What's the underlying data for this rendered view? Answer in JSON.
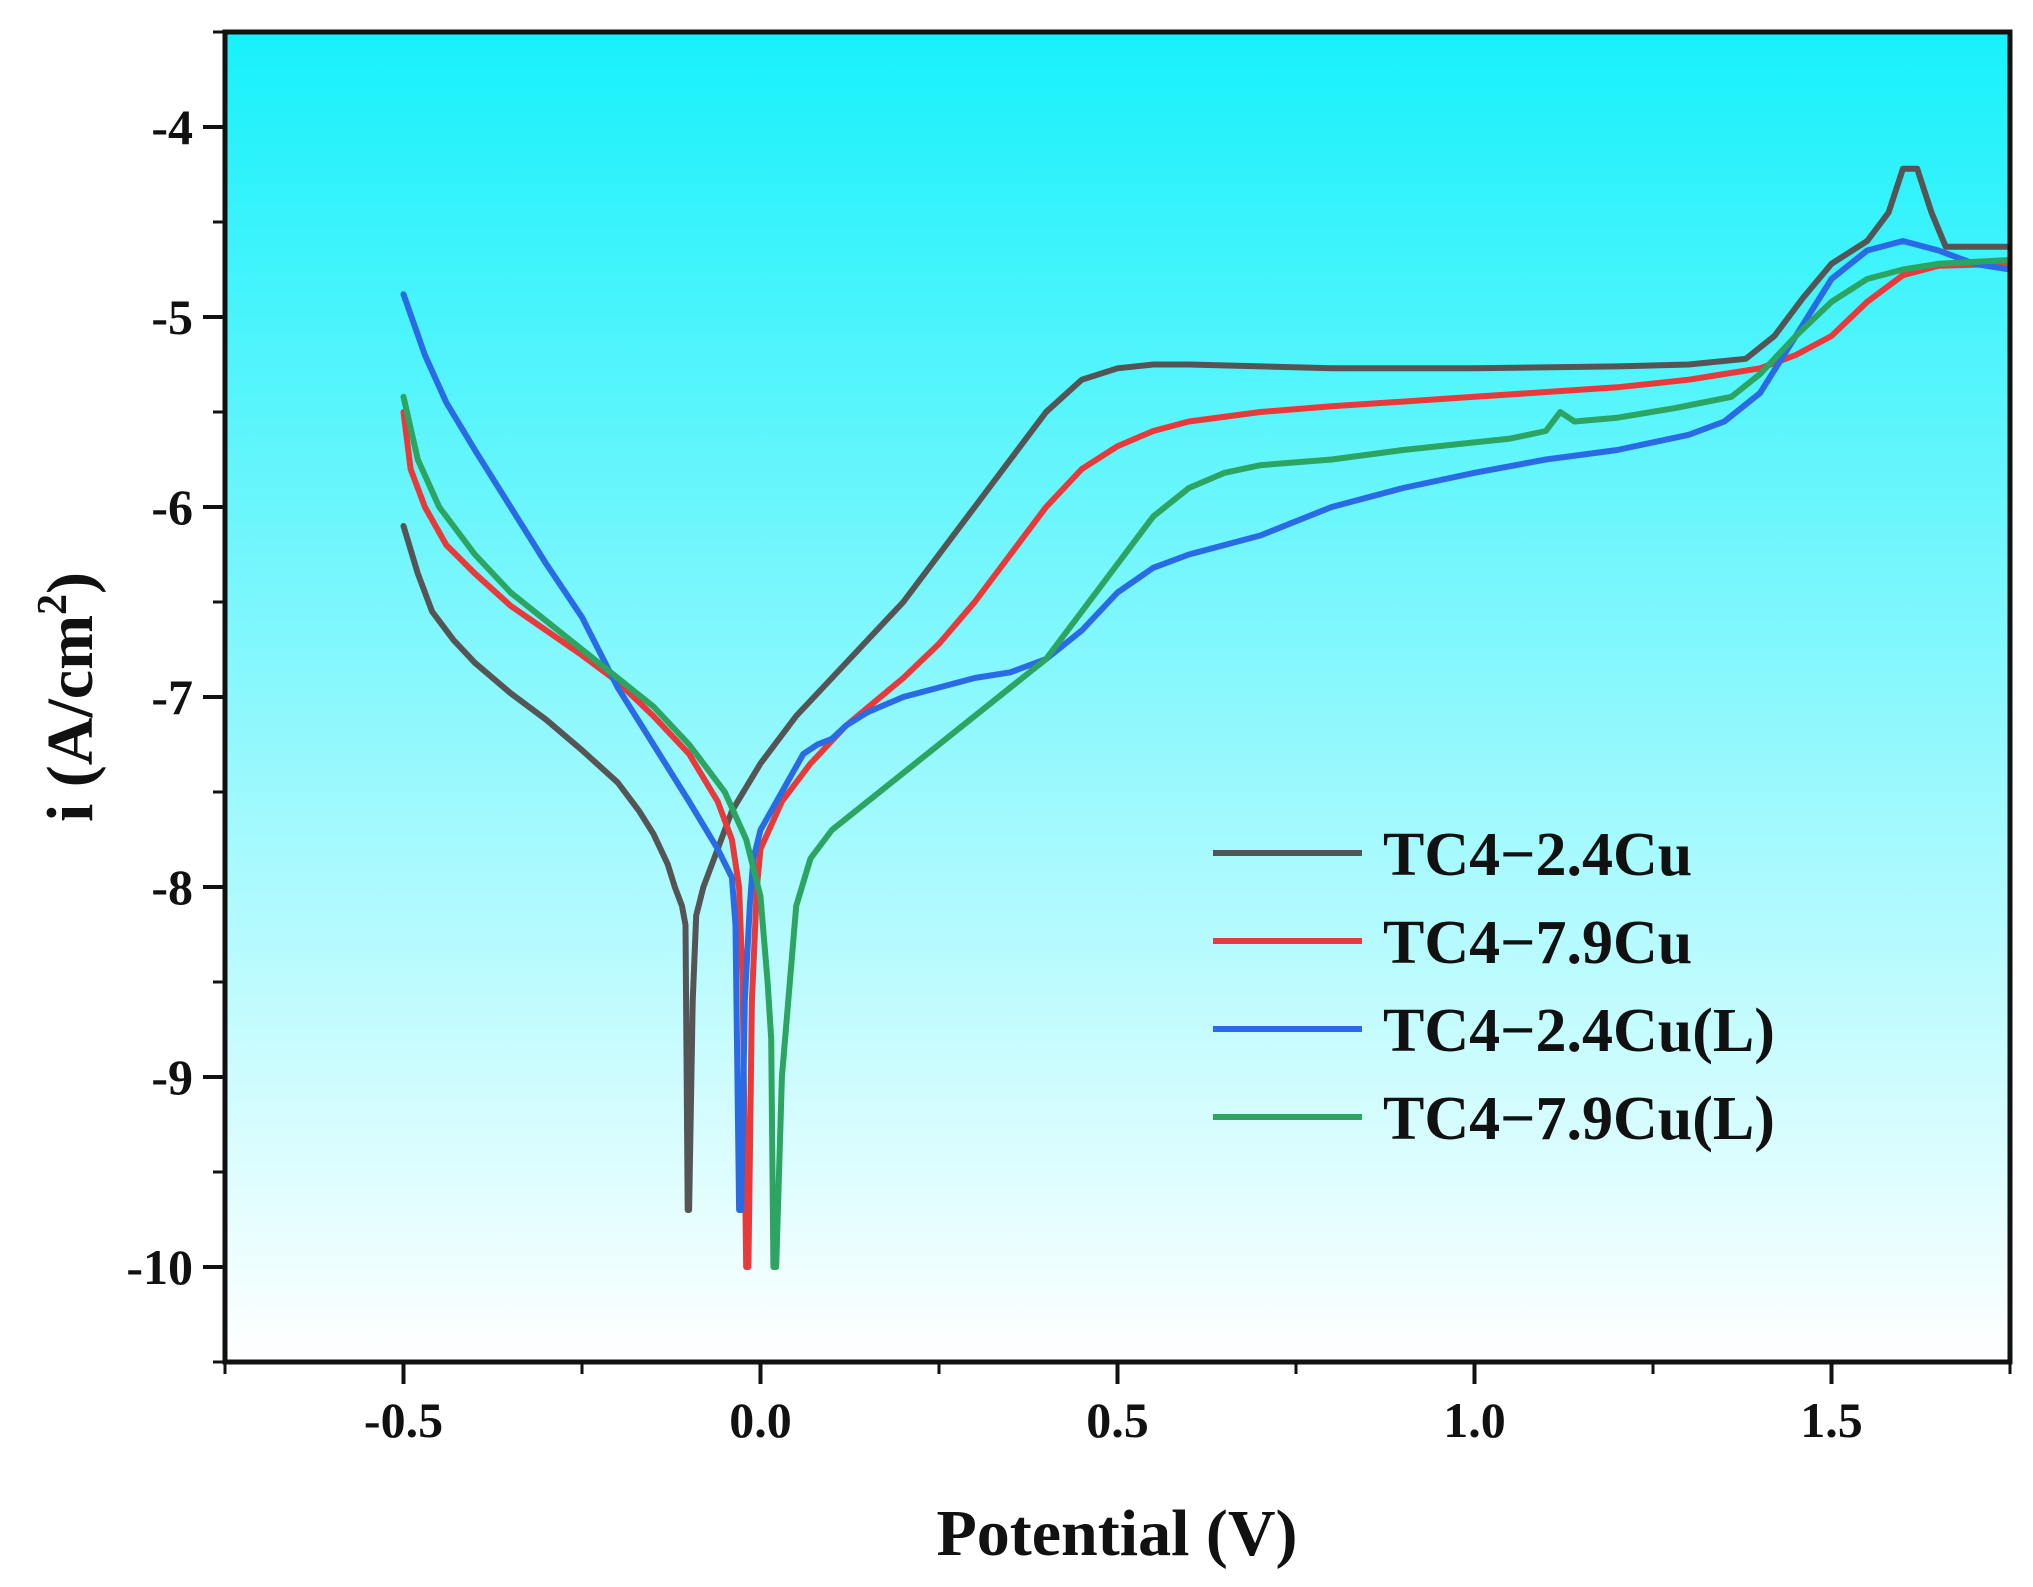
{
  "chart_data": {
    "type": "line",
    "title": "",
    "xlabel": "Potential (V)",
    "ylabel_main": "i (A/cm",
    "ylabel_sup": "2",
    "ylabel_close": ")",
    "xlim": [
      -0.75,
      1.75
    ],
    "ylim": [
      -10.5,
      -3.5
    ],
    "x_ticks": [
      -0.5,
      0.0,
      0.5,
      1.0,
      1.5
    ],
    "x_tick_labels": [
      "-0.5",
      "0.0",
      "0.5",
      "1.0",
      "1.5"
    ],
    "y_ticks": [
      -10,
      -9,
      -8,
      -7,
      -6,
      -5,
      -4
    ],
    "y_tick_labels": [
      "-10",
      "-9",
      "-8",
      "-7",
      "-6",
      "-5",
      "-4"
    ],
    "legend_position": "lower-right",
    "background": {
      "top": "#17f1fb",
      "bottom": "#ffffff"
    },
    "series": [
      {
        "name": "TC4−2.4Cu",
        "color": "#555555",
        "points": [
          [
            -0.5,
            -6.1
          ],
          [
            -0.48,
            -6.35
          ],
          [
            -0.46,
            -6.55
          ],
          [
            -0.43,
            -6.7
          ],
          [
            -0.4,
            -6.82
          ],
          [
            -0.35,
            -6.98
          ],
          [
            -0.3,
            -7.12
          ],
          [
            -0.25,
            -7.28
          ],
          [
            -0.2,
            -7.45
          ],
          [
            -0.17,
            -7.6
          ],
          [
            -0.15,
            -7.72
          ],
          [
            -0.13,
            -7.88
          ],
          [
            -0.12,
            -8.0
          ],
          [
            -0.11,
            -8.1
          ],
          [
            -0.105,
            -8.2
          ],
          [
            -0.102,
            -9.7
          ],
          [
            -0.1,
            -9.7
          ],
          [
            -0.095,
            -8.6
          ],
          [
            -0.09,
            -8.15
          ],
          [
            -0.08,
            -8.0
          ],
          [
            -0.06,
            -7.8
          ],
          [
            -0.04,
            -7.6
          ],
          [
            0.0,
            -7.35
          ],
          [
            0.05,
            -7.1
          ],
          [
            0.1,
            -6.9
          ],
          [
            0.15,
            -6.7
          ],
          [
            0.2,
            -6.5
          ],
          [
            0.25,
            -6.25
          ],
          [
            0.3,
            -6.0
          ],
          [
            0.35,
            -5.75
          ],
          [
            0.4,
            -5.5
          ],
          [
            0.45,
            -5.33
          ],
          [
            0.5,
            -5.27
          ],
          [
            0.55,
            -5.25
          ],
          [
            0.6,
            -5.25
          ],
          [
            0.8,
            -5.27
          ],
          [
            1.0,
            -5.27
          ],
          [
            1.2,
            -5.26
          ],
          [
            1.3,
            -5.25
          ],
          [
            1.38,
            -5.22
          ],
          [
            1.42,
            -5.1
          ],
          [
            1.46,
            -4.9
          ],
          [
            1.5,
            -4.72
          ],
          [
            1.55,
            -4.6
          ],
          [
            1.58,
            -4.45
          ],
          [
            1.6,
            -4.22
          ],
          [
            1.62,
            -4.22
          ],
          [
            1.64,
            -4.45
          ],
          [
            1.66,
            -4.63
          ],
          [
            1.7,
            -4.63
          ],
          [
            1.75,
            -4.63
          ]
        ]
      },
      {
        "name": "TC4−7.9Cu",
        "color": "#e83a3a",
        "points": [
          [
            -0.5,
            -5.5
          ],
          [
            -0.49,
            -5.8
          ],
          [
            -0.47,
            -6.0
          ],
          [
            -0.44,
            -6.2
          ],
          [
            -0.4,
            -6.35
          ],
          [
            -0.35,
            -6.52
          ],
          [
            -0.3,
            -6.65
          ],
          [
            -0.25,
            -6.78
          ],
          [
            -0.2,
            -6.92
          ],
          [
            -0.15,
            -7.1
          ],
          [
            -0.1,
            -7.3
          ],
          [
            -0.06,
            -7.55
          ],
          [
            -0.04,
            -7.75
          ],
          [
            -0.03,
            -8.0
          ],
          [
            -0.025,
            -8.5
          ],
          [
            -0.02,
            -10.0
          ],
          [
            -0.017,
            -10.0
          ],
          [
            -0.012,
            -8.6
          ],
          [
            -0.005,
            -8.0
          ],
          [
            0.0,
            -7.8
          ],
          [
            0.03,
            -7.55
          ],
          [
            0.07,
            -7.35
          ],
          [
            0.12,
            -7.15
          ],
          [
            0.2,
            -6.9
          ],
          [
            0.25,
            -6.72
          ],
          [
            0.3,
            -6.5
          ],
          [
            0.35,
            -6.25
          ],
          [
            0.4,
            -6.0
          ],
          [
            0.45,
            -5.8
          ],
          [
            0.5,
            -5.68
          ],
          [
            0.55,
            -5.6
          ],
          [
            0.6,
            -5.55
          ],
          [
            0.7,
            -5.5
          ],
          [
            0.8,
            -5.47
          ],
          [
            1.0,
            -5.42
          ],
          [
            1.2,
            -5.37
          ],
          [
            1.3,
            -5.33
          ],
          [
            1.35,
            -5.3
          ],
          [
            1.4,
            -5.27
          ],
          [
            1.45,
            -5.2
          ],
          [
            1.5,
            -5.1
          ],
          [
            1.55,
            -4.92
          ],
          [
            1.6,
            -4.78
          ],
          [
            1.65,
            -4.73
          ],
          [
            1.75,
            -4.72
          ]
        ]
      },
      {
        "name": "TC4−2.4Cu(L)",
        "color": "#2a6be5",
        "points": [
          [
            -0.5,
            -4.88
          ],
          [
            -0.47,
            -5.2
          ],
          [
            -0.44,
            -5.45
          ],
          [
            -0.4,
            -5.7
          ],
          [
            -0.35,
            -6.0
          ],
          [
            -0.3,
            -6.3
          ],
          [
            -0.25,
            -6.58
          ],
          [
            -0.2,
            -6.95
          ],
          [
            -0.15,
            -7.25
          ],
          [
            -0.1,
            -7.55
          ],
          [
            -0.06,
            -7.8
          ],
          [
            -0.04,
            -7.95
          ],
          [
            -0.035,
            -8.2
          ],
          [
            -0.03,
            -9.7
          ],
          [
            -0.027,
            -9.7
          ],
          [
            -0.022,
            -8.6
          ],
          [
            -0.015,
            -8.1
          ],
          [
            -0.01,
            -7.85
          ],
          [
            0.0,
            -7.7
          ],
          [
            0.03,
            -7.5
          ],
          [
            0.06,
            -7.3
          ],
          [
            0.08,
            -7.25
          ],
          [
            0.1,
            -7.22
          ],
          [
            0.12,
            -7.15
          ],
          [
            0.15,
            -7.08
          ],
          [
            0.2,
            -7.0
          ],
          [
            0.25,
            -6.95
          ],
          [
            0.3,
            -6.9
          ],
          [
            0.35,
            -6.87
          ],
          [
            0.4,
            -6.8
          ],
          [
            0.45,
            -6.65
          ],
          [
            0.5,
            -6.45
          ],
          [
            0.55,
            -6.32
          ],
          [
            0.6,
            -6.25
          ],
          [
            0.65,
            -6.2
          ],
          [
            0.7,
            -6.15
          ],
          [
            0.8,
            -6.0
          ],
          [
            0.9,
            -5.9
          ],
          [
            1.0,
            -5.82
          ],
          [
            1.1,
            -5.75
          ],
          [
            1.2,
            -5.7
          ],
          [
            1.3,
            -5.62
          ],
          [
            1.35,
            -5.55
          ],
          [
            1.4,
            -5.4
          ],
          [
            1.45,
            -5.1
          ],
          [
            1.5,
            -4.8
          ],
          [
            1.55,
            -4.65
          ],
          [
            1.6,
            -4.6
          ],
          [
            1.65,
            -4.65
          ],
          [
            1.7,
            -4.72
          ],
          [
            1.75,
            -4.75
          ]
        ]
      },
      {
        "name": "TC4−7.9Cu(L)",
        "color": "#2da562",
        "points": [
          [
            -0.5,
            -5.42
          ],
          [
            -0.48,
            -5.75
          ],
          [
            -0.45,
            -6.0
          ],
          [
            -0.4,
            -6.25
          ],
          [
            -0.35,
            -6.45
          ],
          [
            -0.3,
            -6.6
          ],
          [
            -0.25,
            -6.75
          ],
          [
            -0.2,
            -6.9
          ],
          [
            -0.15,
            -7.05
          ],
          [
            -0.1,
            -7.25
          ],
          [
            -0.05,
            -7.5
          ],
          [
            -0.02,
            -7.75
          ],
          [
            0.0,
            -8.05
          ],
          [
            0.01,
            -8.5
          ],
          [
            0.015,
            -8.8
          ],
          [
            0.018,
            -10.0
          ],
          [
            0.022,
            -10.0
          ],
          [
            0.03,
            -9.0
          ],
          [
            0.05,
            -8.1
          ],
          [
            0.07,
            -7.85
          ],
          [
            0.1,
            -7.7
          ],
          [
            0.15,
            -7.55
          ],
          [
            0.2,
            -7.4
          ],
          [
            0.25,
            -7.25
          ],
          [
            0.3,
            -7.1
          ],
          [
            0.35,
            -6.95
          ],
          [
            0.4,
            -6.8
          ],
          [
            0.45,
            -6.55
          ],
          [
            0.5,
            -6.3
          ],
          [
            0.55,
            -6.05
          ],
          [
            0.6,
            -5.9
          ],
          [
            0.65,
            -5.82
          ],
          [
            0.7,
            -5.78
          ],
          [
            0.8,
            -5.75
          ],
          [
            0.9,
            -5.7
          ],
          [
            1.0,
            -5.66
          ],
          [
            1.05,
            -5.64
          ],
          [
            1.1,
            -5.6
          ],
          [
            1.12,
            -5.5
          ],
          [
            1.14,
            -5.55
          ],
          [
            1.2,
            -5.53
          ],
          [
            1.28,
            -5.48
          ],
          [
            1.32,
            -5.45
          ],
          [
            1.36,
            -5.42
          ],
          [
            1.4,
            -5.3
          ],
          [
            1.45,
            -5.1
          ],
          [
            1.5,
            -4.92
          ],
          [
            1.55,
            -4.8
          ],
          [
            1.6,
            -4.75
          ],
          [
            1.65,
            -4.72
          ],
          [
            1.75,
            -4.7
          ]
        ]
      }
    ]
  }
}
